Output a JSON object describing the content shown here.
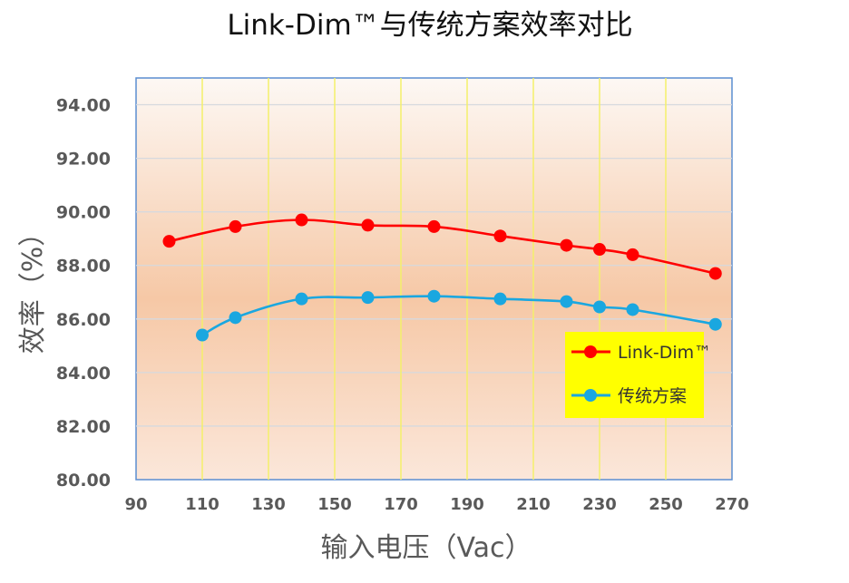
{
  "chart_data": {
    "type": "line",
    "title": "Link-Dim™与传统方案效率对比",
    "xlabel": "输入电压（Vac）",
    "ylabel": "效率（%）",
    "xlim": [
      90,
      270
    ],
    "ylim": [
      80,
      95
    ],
    "x_ticks": [
      "90",
      "110",
      "130",
      "150",
      "170",
      "190",
      "210",
      "230",
      "250",
      "270"
    ],
    "y_ticks": [
      "80.00",
      "82.00",
      "84.00",
      "86.00",
      "88.00",
      "90.00",
      "92.00",
      "94.00"
    ],
    "grid": {
      "vertical": true,
      "horizontal": true
    },
    "legend_position": "bottom-right",
    "series": [
      {
        "name": "Link-Dim™",
        "color": "#ff0000",
        "points": [
          {
            "x": 100,
            "y": 88.9
          },
          {
            "x": 120,
            "y": 89.45
          },
          {
            "x": 140,
            "y": 89.7
          },
          {
            "x": 160,
            "y": 89.5
          },
          {
            "x": 180,
            "y": 89.45
          },
          {
            "x": 200,
            "y": 89.1
          },
          {
            "x": 220,
            "y": 88.75
          },
          {
            "x": 230,
            "y": 88.6
          },
          {
            "x": 240,
            "y": 88.4
          },
          {
            "x": 265,
            "y": 87.7
          }
        ]
      },
      {
        "name": "传统方案",
        "color": "#1aa7e0",
        "points": [
          {
            "x": 110,
            "y": 85.4
          },
          {
            "x": 120,
            "y": 86.05
          },
          {
            "x": 140,
            "y": 86.75
          },
          {
            "x": 160,
            "y": 86.8
          },
          {
            "x": 180,
            "y": 86.85
          },
          {
            "x": 200,
            "y": 86.75
          },
          {
            "x": 220,
            "y": 86.65
          },
          {
            "x": 230,
            "y": 86.45
          },
          {
            "x": 240,
            "y": 86.35
          },
          {
            "x": 265,
            "y": 85.8
          }
        ]
      }
    ]
  }
}
